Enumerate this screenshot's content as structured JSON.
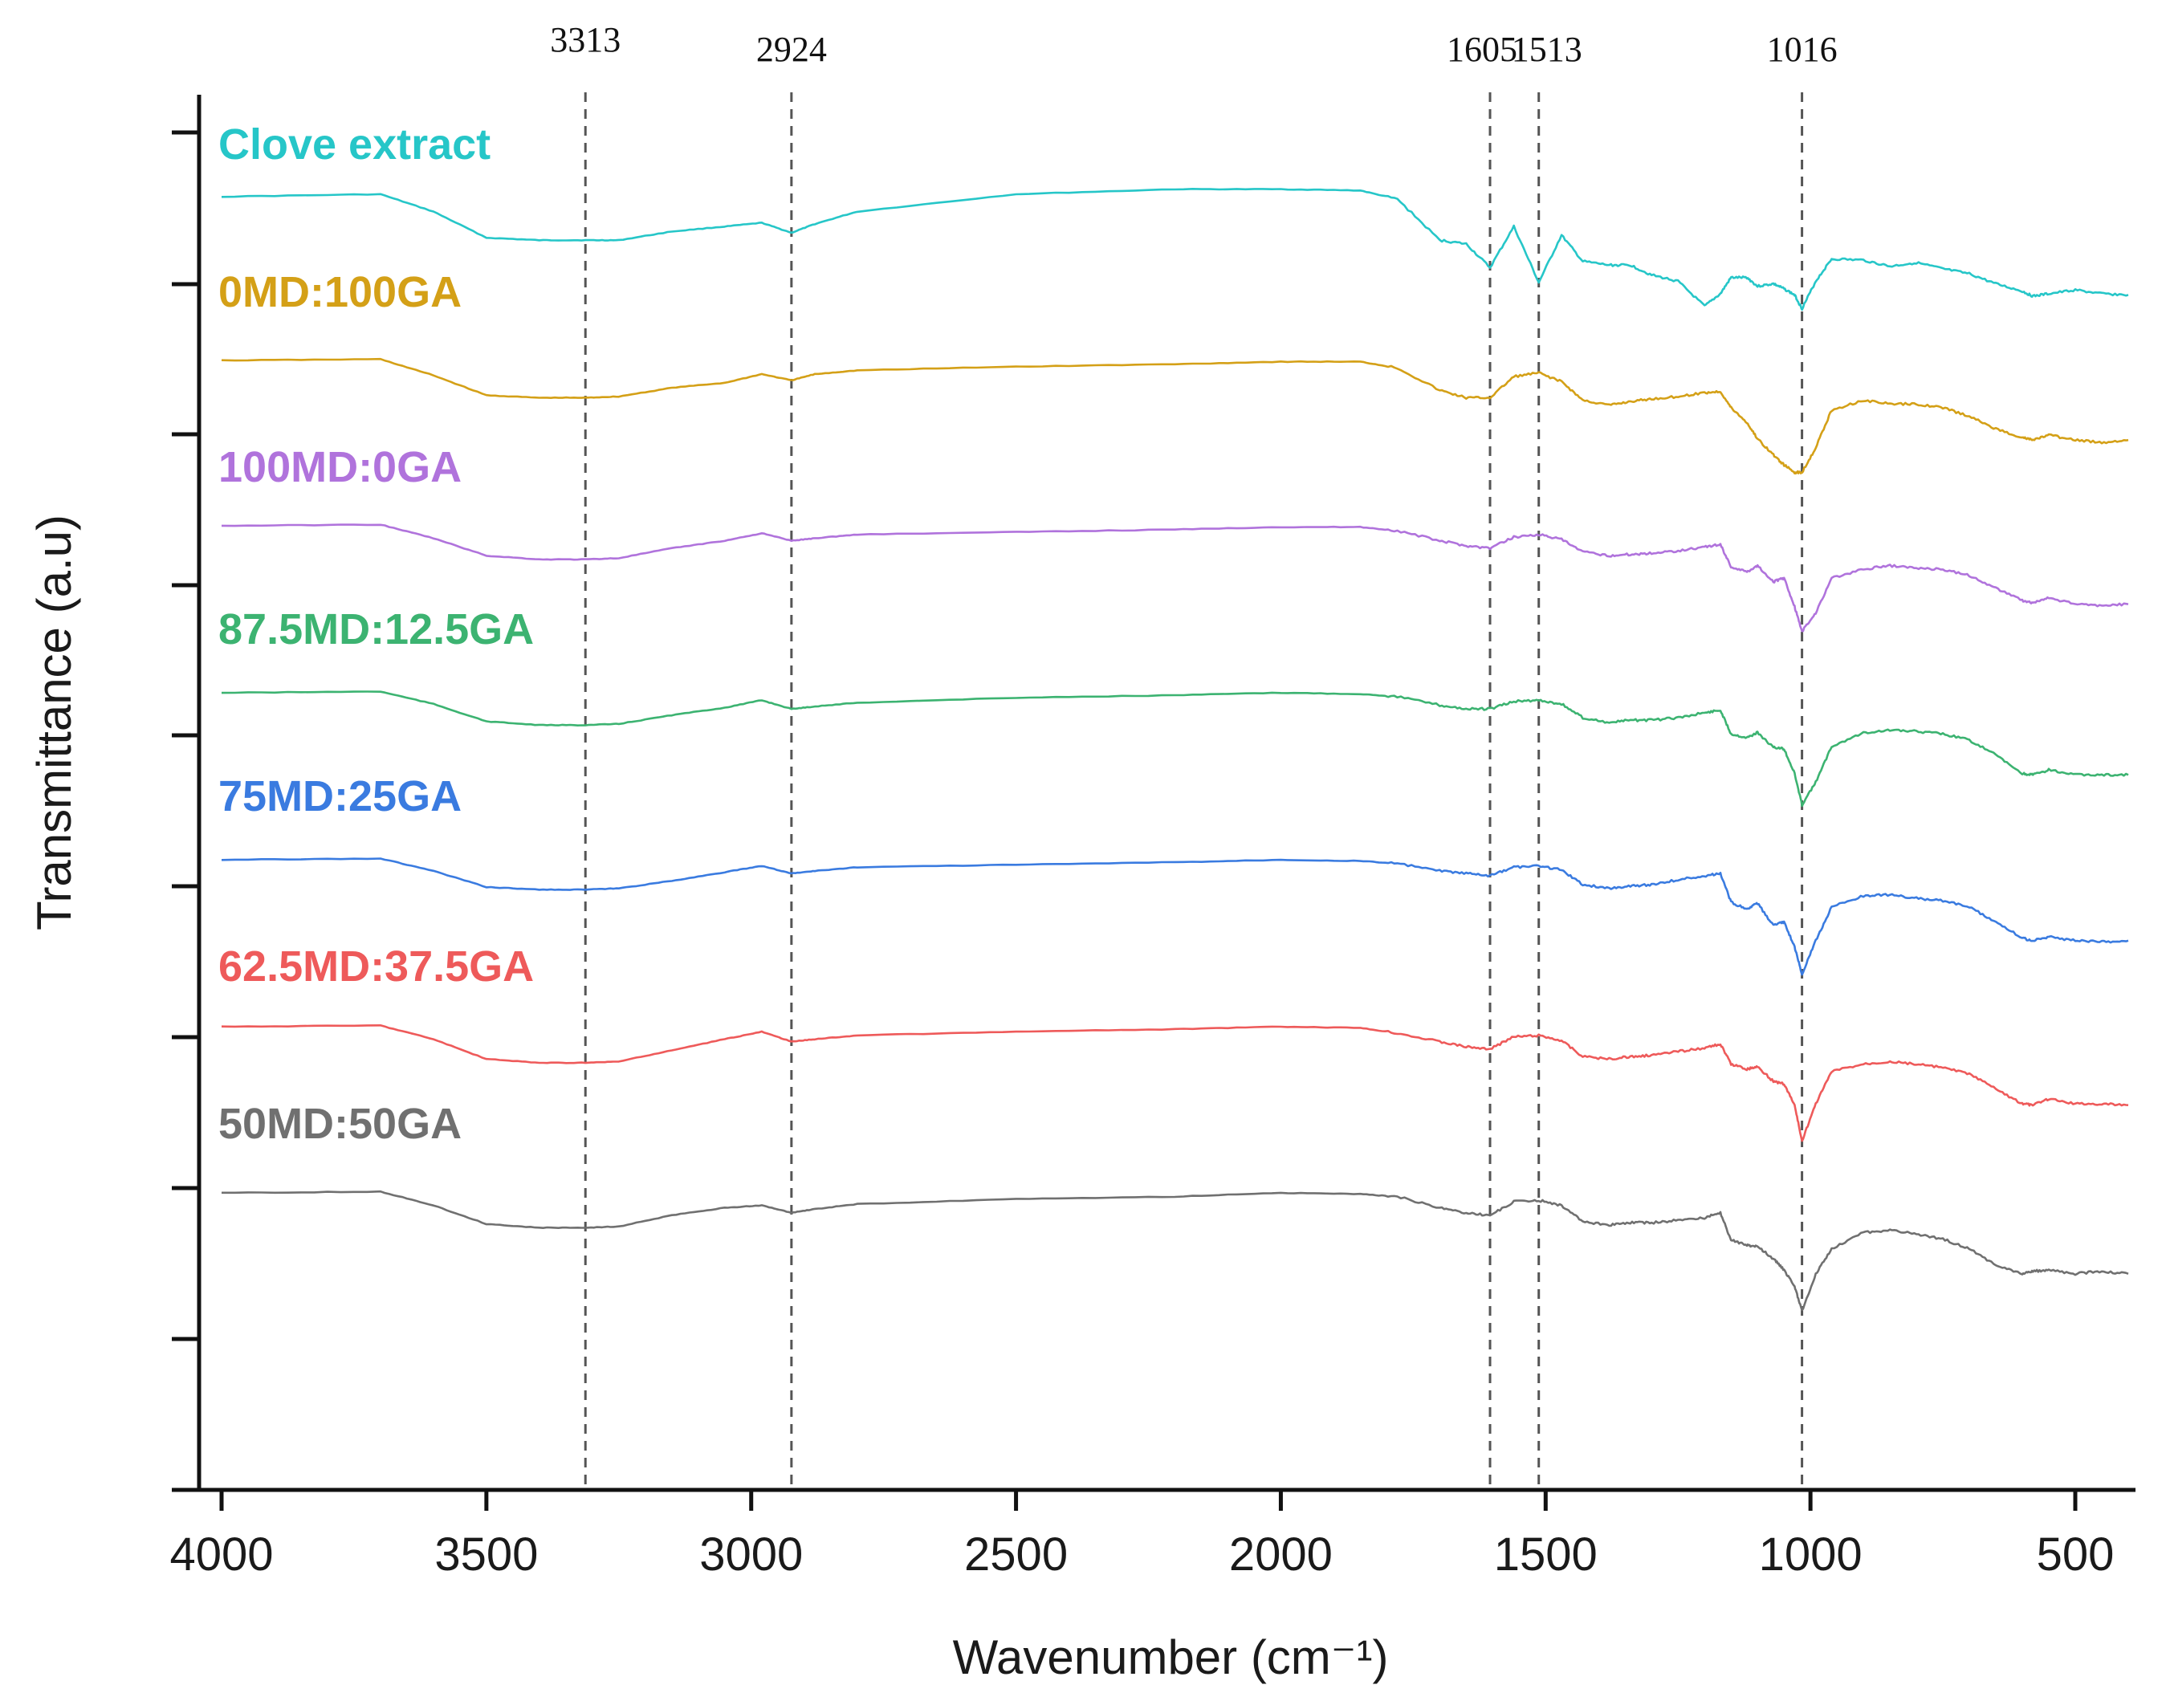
{
  "chart_data": {
    "type": "line",
    "xlabel": "Wavenumber (cm⁻¹)",
    "ylabel": "Transmittance (a.u)",
    "xlim": [
      4000,
      400
    ],
    "x_reversed": true,
    "x_ticks": [
      "4000",
      "3500",
      "3000",
      "2500",
      "2000",
      "1500",
      "1000",
      "500"
    ],
    "x_tick_values": [
      4000,
      3500,
      3000,
      2500,
      2000,
      1500,
      1000,
      500
    ],
    "y_ticks_count": 9,
    "y_tick_labels_shown": false,
    "grid": false,
    "stacking": "vertically offset traces, one per sample",
    "peak_markers": [
      {
        "label": "3313",
        "x": 3313
      },
      {
        "label": "2924",
        "x": 2924
      },
      {
        "label": "1605",
        "x": 1605
      },
      {
        "label": "1513",
        "x": 1513
      },
      {
        "label": "1016",
        "x": 1016
      }
    ],
    "x": [
      4000,
      3700,
      3600,
      3500,
      3400,
      3313,
      3250,
      3150,
      3050,
      2980,
      2924,
      2880,
      2800,
      2500,
      2200,
      2000,
      1850,
      1780,
      1700,
      1650,
      1605,
      1560,
      1513,
      1470,
      1430,
      1380,
      1340,
      1300,
      1250,
      1200,
      1170,
      1150,
      1120,
      1100,
      1070,
      1050,
      1030,
      1016,
      990,
      960,
      900,
      850,
      800,
      750,
      700,
      650,
      600,
      580,
      550,
      500,
      450,
      400
    ],
    "series": [
      {
        "name": "Clove extract",
        "color": "#26C6C8",
        "values": [
          0,
          0.2,
          -1.2,
          -3.3,
          -3.5,
          -3.5,
          -3.5,
          -2.8,
          -2.4,
          -2.1,
          -2.9,
          -2.2,
          -1.2,
          0.2,
          0.6,
          0.6,
          0.5,
          -0.2,
          -3.5,
          -3.8,
          -5.7,
          -2.4,
          -6.9,
          -3.1,
          -5.2,
          -5.5,
          -5.5,
          -6.3,
          -6.8,
          -8.8,
          -7.8,
          -6.5,
          -6.5,
          -7.2,
          -7.0,
          -7.4,
          -7.9,
          -9.0,
          -6.8,
          -5.0,
          -5.1,
          -5.6,
          -5.3,
          -5.8,
          -6.2,
          -7.0,
          -7.6,
          -8.0,
          -7.8,
          -7.5,
          -7.8,
          -7.9
        ]
      },
      {
        "name": "0MD:100GA",
        "color": "#D4A017",
        "values": [
          0,
          0.1,
          -1.2,
          -2.8,
          -3.0,
          -3.0,
          -2.9,
          -2.2,
          -1.8,
          -1.1,
          -1.6,
          -1.1,
          -0.8,
          -0.5,
          -0.3,
          -0.1,
          -0.1,
          -0.6,
          -2.4,
          -3.0,
          -3.0,
          -1.3,
          -1.0,
          -1.7,
          -3.2,
          -3.6,
          -3.3,
          -3.1,
          -2.9,
          -2.6,
          -2.5,
          -3.8,
          -5.0,
          -6.3,
          -7.6,
          -8.4,
          -9.0,
          -9.0,
          -7.0,
          -4.0,
          -3.2,
          -3.5,
          -3.5,
          -3.8,
          -4.5,
          -5.5,
          -6.2,
          -6.4,
          -6.0,
          -6.4,
          -6.6,
          -6.4
        ]
      },
      {
        "name": "100MD:0GA",
        "color": "#B073DC",
        "values": [
          0,
          0.1,
          -1.0,
          -2.4,
          -2.7,
          -2.7,
          -2.6,
          -1.8,
          -1.2,
          -0.6,
          -1.2,
          -1.0,
          -0.7,
          -0.5,
          -0.3,
          -0.1,
          -0.1,
          -0.4,
          -1.2,
          -1.6,
          -1.8,
          -0.9,
          -0.7,
          -1.1,
          -2.1,
          -2.4,
          -2.3,
          -2.2,
          -2.0,
          -1.7,
          -1.5,
          -3.3,
          -3.7,
          -3.2,
          -4.5,
          -4.2,
          -6.5,
          -8.5,
          -7.0,
          -4.2,
          -3.5,
          -3.2,
          -3.4,
          -3.5,
          -4.0,
          -5.0,
          -6.0,
          -6.2,
          -5.8,
          -6.3,
          -6.4,
          -6.3
        ]
      },
      {
        "name": "87.5MD:12.5GA",
        "color": "#3CB371",
        "values": [
          0,
          0.1,
          -0.9,
          -2.3,
          -2.6,
          -2.6,
          -2.5,
          -1.8,
          -1.2,
          -0.6,
          -1.3,
          -1.1,
          -0.8,
          -0.4,
          -0.2,
          0,
          -0.1,
          -0.3,
          -1.0,
          -1.3,
          -1.3,
          -0.7,
          -0.6,
          -0.9,
          -2.0,
          -2.4,
          -2.2,
          -2.2,
          -2.0,
          -1.6,
          -1.4,
          -3.3,
          -3.6,
          -3.2,
          -4.4,
          -4.5,
          -6.5,
          -9.0,
          -7.2,
          -4.3,
          -3.2,
          -3.0,
          -3.1,
          -3.3,
          -3.8,
          -5.0,
          -6.5,
          -6.6,
          -6.2,
          -6.6,
          -6.6,
          -6.6
        ]
      },
      {
        "name": "75MD:25GA",
        "color": "#3A7BE0",
        "values": [
          0,
          0.1,
          -0.9,
          -2.2,
          -2.4,
          -2.4,
          -2.3,
          -1.7,
          -1.0,
          -0.5,
          -1.1,
          -0.9,
          -0.6,
          -0.4,
          -0.2,
          0,
          -0.1,
          -0.3,
          -0.9,
          -1.1,
          -1.3,
          -0.6,
          -0.5,
          -0.8,
          -2.0,
          -2.3,
          -2.1,
          -2.0,
          -1.6,
          -1.3,
          -1.1,
          -3.4,
          -4.0,
          -3.5,
          -5.3,
          -5.0,
          -7.0,
          -9.2,
          -6.5,
          -3.8,
          -2.9,
          -2.8,
          -3.1,
          -3.3,
          -3.8,
          -5.0,
          -6.3,
          -6.5,
          -6.2,
          -6.5,
          -6.6,
          -6.5
        ]
      },
      {
        "name": "62.5MD:37.5GA",
        "color": "#EE5A5A",
        "values": [
          0,
          0.1,
          -1.0,
          -2.6,
          -2.9,
          -2.9,
          -2.8,
          -1.9,
          -1.0,
          -0.4,
          -1.2,
          -1.0,
          -0.7,
          -0.4,
          -0.2,
          0,
          -0.1,
          -0.5,
          -1.2,
          -1.6,
          -1.8,
          -0.8,
          -0.7,
          -1.1,
          -2.4,
          -2.6,
          -2.4,
          -2.3,
          -2.0,
          -1.7,
          -1.4,
          -3.0,
          -3.4,
          -3.2,
          -4.4,
          -4.6,
          -6.3,
          -9.2,
          -6.2,
          -3.6,
          -3.0,
          -2.8,
          -3.0,
          -3.3,
          -3.8,
          -5.0,
          -6.2,
          -6.3,
          -5.8,
          -6.2,
          -6.2,
          -6.3
        ]
      },
      {
        "name": "50MD:50GA",
        "color": "#707070",
        "values": [
          0,
          0.1,
          -1.0,
          -2.5,
          -2.8,
          -2.8,
          -2.7,
          -1.8,
          -1.2,
          -1.0,
          -1.6,
          -1.3,
          -0.9,
          -0.5,
          -0.3,
          0,
          -0.1,
          -0.3,
          -1.2,
          -1.6,
          -1.8,
          -0.7,
          -0.6,
          -1.0,
          -2.3,
          -2.6,
          -2.4,
          -2.4,
          -2.2,
          -2.0,
          -1.6,
          -3.8,
          -4.2,
          -4.3,
          -5.3,
          -6.2,
          -7.5,
          -9.5,
          -6.5,
          -4.5,
          -3.2,
          -3.0,
          -3.3,
          -3.7,
          -4.5,
          -5.8,
          -6.5,
          -6.3,
          -6.2,
          -6.5,
          -6.3,
          -6.5
        ]
      }
    ]
  }
}
